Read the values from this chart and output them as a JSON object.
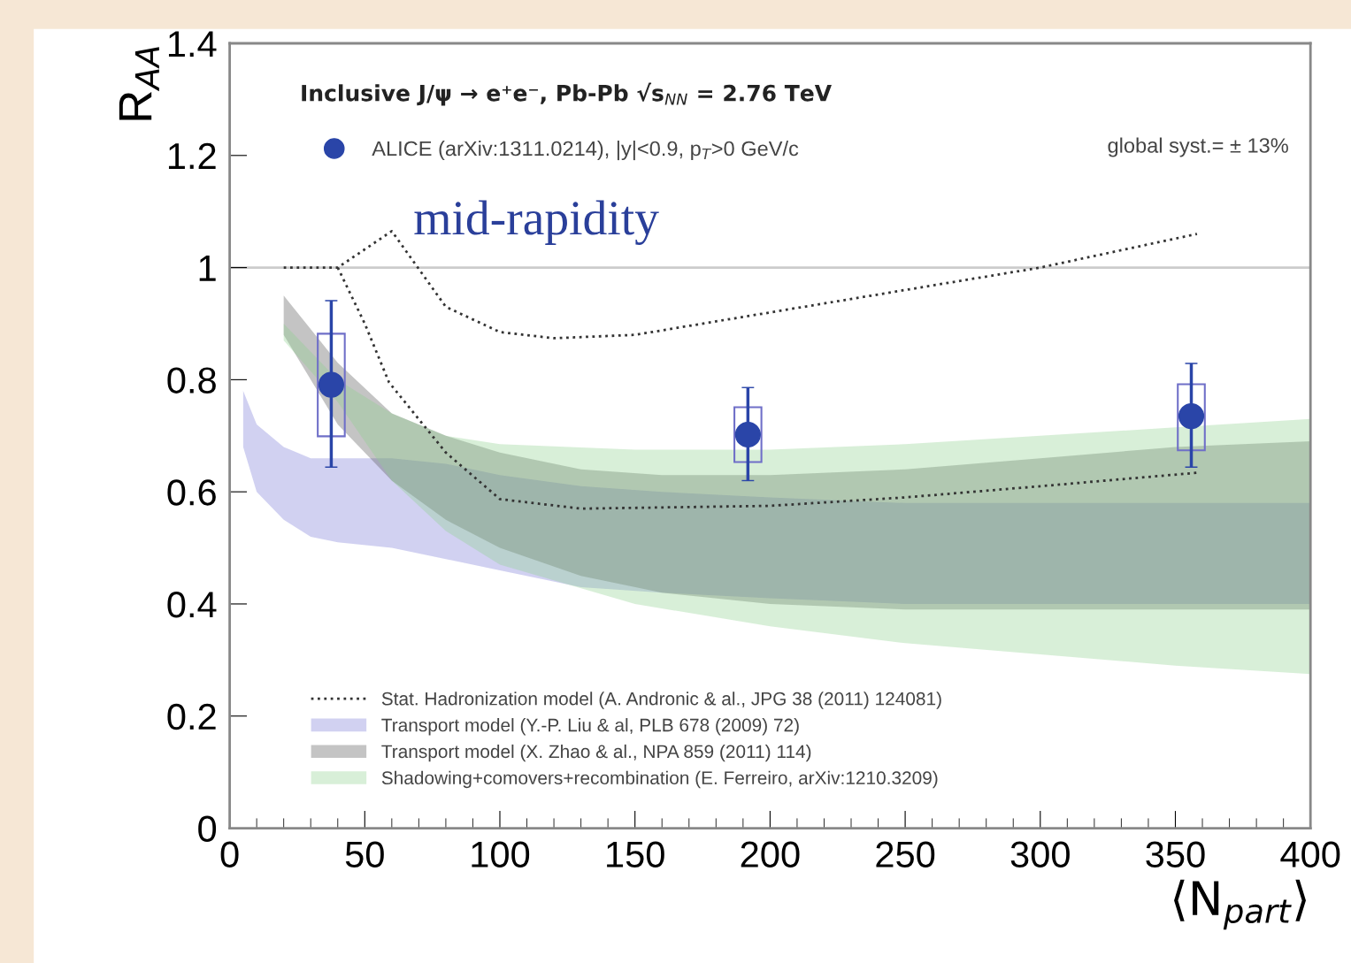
{
  "chart_data": {
    "type": "scatter",
    "xlabel": "⟨N$_{part}$⟩",
    "ylabel": "R$_{AA}$",
    "xlim": [
      0,
      400
    ],
    "xticks": [
      0,
      50,
      100,
      150,
      200,
      250,
      300,
      350,
      400
    ],
    "ylim": [
      0,
      1.4
    ],
    "yticks": [
      0,
      0.2,
      0.4,
      0.6,
      0.8,
      1,
      1.2,
      1.4
    ],
    "ref_lines": [
      {
        "axis": "y",
        "value": 1,
        "color": "#cccccc"
      }
    ],
    "legend": "bottom left",
    "series": [
      {
        "type": "line",
        "name": "Stat. Hadronization model (A. Andronic & al., JPG 38 (2011) 124081)",
        "color": "#333333",
        "line_style": "dotted",
        "x": [
          20,
          40,
          60,
          80,
          100,
          120,
          150,
          200,
          250,
          300,
          358
        ],
        "values": [
          1.0,
          1.0,
          1.065,
          0.93,
          0.885,
          0.874,
          0.88,
          0.92,
          0.96,
          1.0,
          1.06
        ]
      },
      {
        "type": "line",
        "color": "#333333",
        "line_style": "dotted",
        "x": [
          40,
          50,
          59,
          80,
          100,
          130,
          200,
          250,
          300,
          358
        ],
        "values": [
          1.0,
          0.9,
          0.795,
          0.67,
          0.587,
          0.57,
          0.575,
          0.59,
          0.61,
          0.634
        ]
      },
      {
        "type": "area",
        "name": "Transport model (Y.-P. Liu & al, PLB 678 (2009) 72)",
        "color": "#7b7bd6",
        "x": [
          5,
          10,
          20,
          30,
          40,
          60,
          80,
          100,
          130,
          160,
          200,
          250,
          300,
          350,
          400
        ],
        "values": [
          null,
          null,
          null,
          null,
          null,
          null,
          null,
          null,
          null,
          null,
          null,
          null,
          null,
          null,
          null
        ],
        "lower": [
          0.68,
          0.6,
          0.55,
          0.52,
          0.51,
          0.5,
          0.48,
          0.46,
          0.43,
          0.42,
          0.41,
          0.4,
          0.4,
          0.4,
          0.4
        ],
        "upper": [
          0.78,
          0.72,
          0.68,
          0.66,
          0.66,
          0.66,
          0.65,
          0.63,
          0.61,
          0.6,
          0.59,
          0.58,
          0.58,
          0.58,
          0.58
        ]
      },
      {
        "type": "area",
        "name": "Transport model (X. Zhao & al., NPA 859 (2011) 114)",
        "color": "#555555",
        "x": [
          20,
          40,
          60,
          80,
          100,
          130,
          160,
          200,
          250,
          300,
          350,
          400
        ],
        "values": [
          null,
          null,
          null,
          null,
          null,
          null,
          null,
          null,
          null,
          null,
          null,
          null
        ],
        "lower": [
          0.88,
          0.72,
          0.62,
          0.55,
          0.5,
          0.45,
          0.42,
          0.4,
          0.39,
          0.39,
          0.39,
          0.39
        ],
        "upper": [
          0.95,
          0.83,
          0.74,
          0.7,
          0.67,
          0.64,
          0.63,
          0.63,
          0.64,
          0.66,
          0.68,
          0.69
        ]
      },
      {
        "type": "area",
        "name": "Shadowing+comovers+recombination (E. Ferreiro, arXiv:1210.3209)",
        "color": "#8fd18f",
        "x": [
          20,
          40,
          60,
          80,
          100,
          150,
          200,
          250,
          300,
          350,
          400
        ],
        "values": [
          null,
          null,
          null,
          null,
          null,
          null,
          null,
          null,
          null,
          null,
          null
        ],
        "lower": [
          0.87,
          0.76,
          0.62,
          0.53,
          0.47,
          0.4,
          0.36,
          0.33,
          0.31,
          0.29,
          0.275
        ],
        "upper": [
          0.9,
          0.8,
          0.74,
          0.7,
          0.685,
          0.675,
          0.675,
          0.685,
          0.7,
          0.715,
          0.73
        ]
      },
      {
        "type": "bar",
        "color": "#6f6fc8",
        "x": [
          37.6,
          191.8,
          355.9
        ],
        "base": [
          0.699,
          0.653,
          0.674
        ],
        "values": [
          0.183,
          0.098,
          0.118
        ]
      },
      {
        "name": "ALICE (arXiv:1311.0214), |y|<0.9, p$_{T}$>0 GeV/c",
        "color": "#2a45a8",
        "marker": "circle",
        "x": [
          37.6,
          191.8,
          355.9
        ],
        "values": [
          0.791,
          0.702,
          0.735
        ],
        "errors": [
          [
            0.644,
            0.941
          ],
          [
            0.62,
            0.786
          ],
          [
            0.644,
            0.829
          ]
        ]
      }
    ],
    "annotations": [
      "Inclusive J/ψ → e⁺e⁻, Pb-Pb √s$_{NN}$ = 2.76 TeV",
      "global syst.= ± 13%",
      "mid-rapidity"
    ]
  }
}
